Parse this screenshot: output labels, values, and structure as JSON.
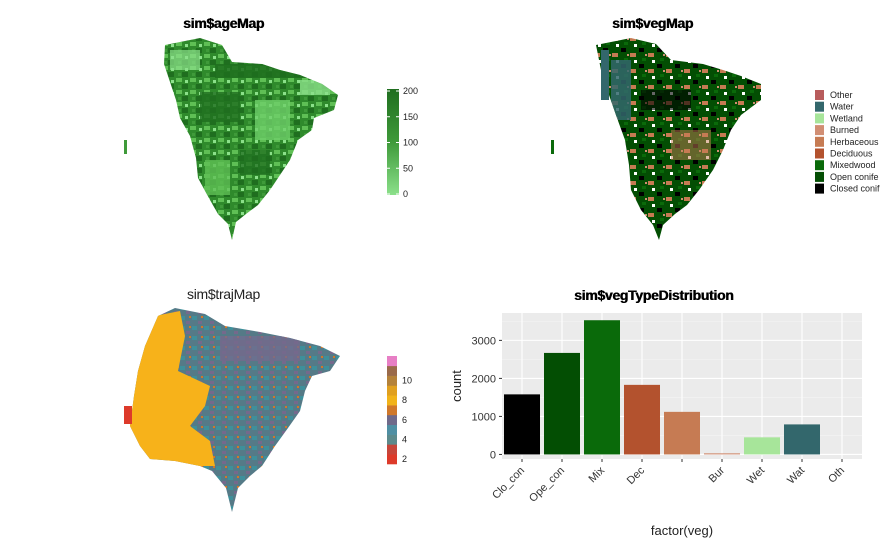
{
  "age_map": {
    "title": "sim$ageMap",
    "legend_ticks": [
      "200",
      "150",
      "100",
      "50",
      "0"
    ],
    "colors": {
      "high": "#1f6e1f",
      "mid": "#3f9a3a",
      "low": "#8be08a"
    }
  },
  "veg_map": {
    "title": "sim$vegMap",
    "legend": [
      {
        "label": "Other",
        "color": "#b85c5c"
      },
      {
        "label": "Water",
        "color": "#33676c"
      },
      {
        "label": "Wetland",
        "color": "#a7e59a"
      },
      {
        "label": "Burned",
        "color": "#d18e73"
      },
      {
        "label": "Herbaceous",
        "color": "#c67b53"
      },
      {
        "label": "Deciduous",
        "color": "#b3522e"
      },
      {
        "label": "Mixedwood",
        "color": "#0a6a0a"
      },
      {
        "label": "Open conife",
        "color": "#034e03"
      },
      {
        "label": "Closed conif",
        "color": "#000000"
      }
    ]
  },
  "traj_map": {
    "title": "sim$trajMap",
    "legend_ticks": [
      "10",
      "8",
      "6",
      "4",
      "2"
    ],
    "legend_colors": [
      "#dd3a2a",
      "#c6463a",
      "#5c8a8c",
      "#4f8fa3",
      "#6f6a8a",
      "#d0782a",
      "#f1b31a",
      "#e0a020",
      "#b4823a",
      "#9a6a4a",
      "#e77fc5"
    ],
    "colors": {
      "yellow": "#f7b21a",
      "slate": "#557a87",
      "teal": "#3f8f9a",
      "purple": "#75698c"
    }
  },
  "chart_data": {
    "type": "bar",
    "title": "sim$vegTypeDistribution",
    "xlabel": "factor(veg)",
    "ylabel": "count",
    "categories": [
      "Clo_con",
      "Ope_con",
      "Mix",
      "Dec",
      "",
      "Bur",
      "Wet",
      "Wat",
      "Oth"
    ],
    "values": [
      1580,
      2670,
      3530,
      1830,
      1120,
      30,
      450,
      790,
      0
    ],
    "colors": [
      "#000000",
      "#034e03",
      "#0a6a0a",
      "#b3522e",
      "#c67b53",
      "#d18e73",
      "#a7e59a",
      "#33676c",
      "#b85c5c"
    ],
    "yticks": [
      0,
      1000,
      2000,
      3000
    ],
    "ylim": [
      -120,
      3720
    ],
    "grid": true,
    "legend": "none"
  }
}
